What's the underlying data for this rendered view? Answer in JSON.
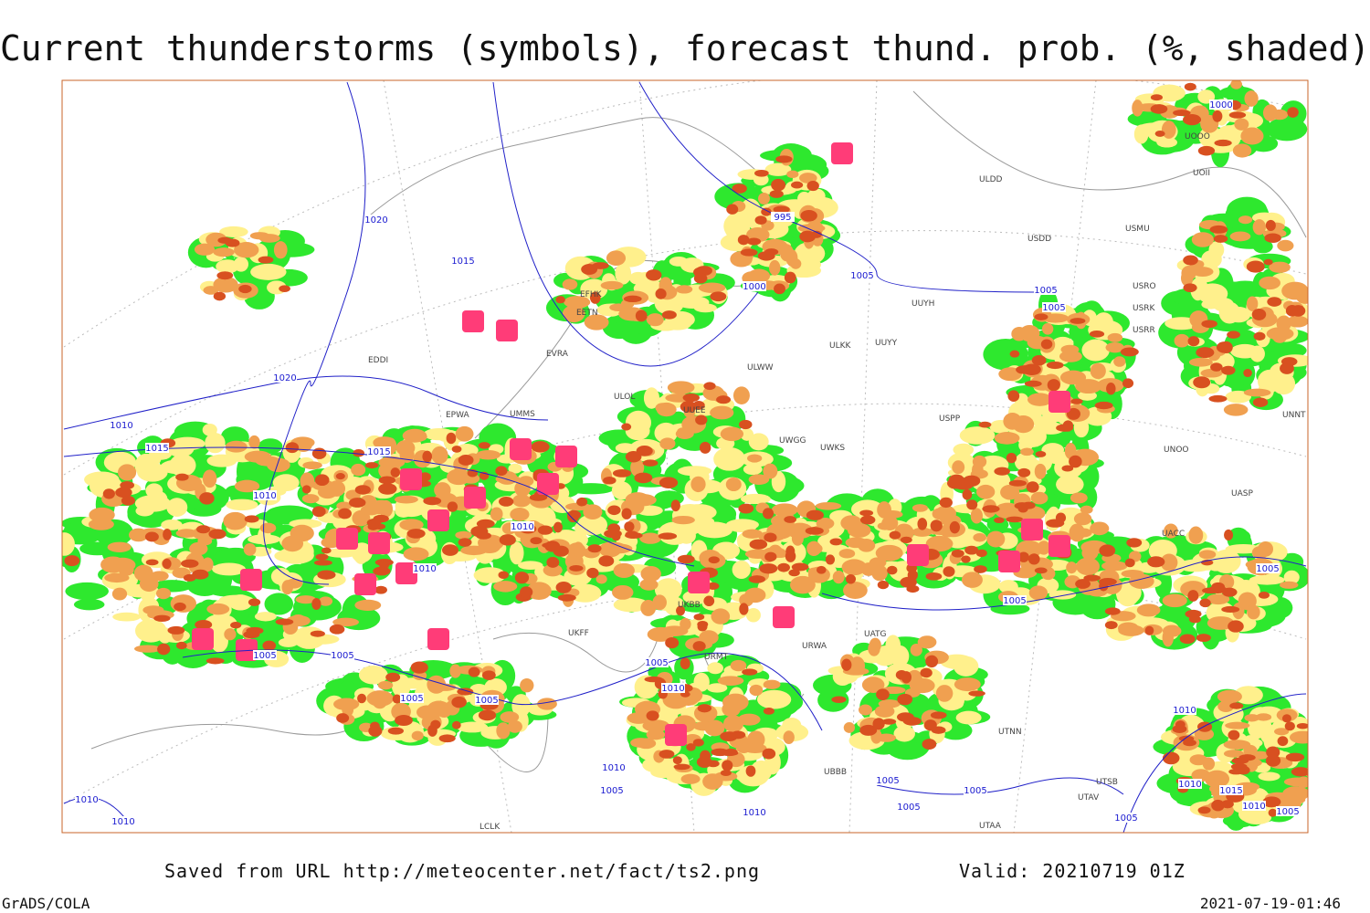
{
  "header": {
    "title": "Current thunderstorms (symbols), forecast thund. prob. (%, shaded)"
  },
  "isobar_labels": [
    "1000",
    "995",
    "1020",
    "1015",
    "1005",
    "1000",
    "1005",
    "1005",
    "1020",
    "1010",
    "1015",
    "1015",
    "1010",
    "1010",
    "1010",
    "1005",
    "1005",
    "1005",
    "1005",
    "1005",
    "1010",
    "1005",
    "1005",
    "1010",
    "1010",
    "1005",
    "1005",
    "1005",
    "1010",
    "1015",
    "1005",
    "1010",
    "1005",
    "1010",
    "1010",
    "1010",
    "1005"
  ],
  "stations": [
    "UOOO",
    "UOII",
    "ULDD",
    "USMU",
    "USDD",
    "USRO",
    "USRK",
    "USRR",
    "EFHK",
    "EETN",
    "EVRA",
    "UUYH",
    "ULKK",
    "UUYY",
    "ULWW",
    "ULOL",
    "EDDI",
    "EPWA",
    "UMMS",
    "UUEE",
    "USPP",
    "UNNT",
    "UWGG",
    "UWKS",
    "UNOO",
    "UASP",
    "UACC",
    "UKBB",
    "UATG",
    "URWA",
    "UTNN",
    "UTSB",
    "UTAV",
    "UTAA",
    "UBBB",
    "URMT",
    "LCLK",
    "UKFF"
  ],
  "footer": {
    "source": "Saved from URL http://meteocenter.net/fact/ts2.png",
    "valid": "Valid: 20210719 01Z",
    "software": "GrADS/COLA",
    "timestamp": "2021-07-19-01:46"
  }
}
